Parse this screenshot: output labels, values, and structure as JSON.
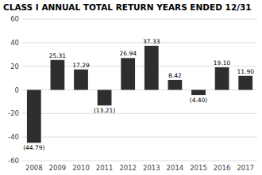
{
  "chart_data": {
    "type": "bar",
    "title": "CLASS I ANNUAL TOTAL RETURN YEARS ENDED 12/31",
    "categories": [
      "2008",
      "2009",
      "2010",
      "2011",
      "2012",
      "2013",
      "2014",
      "2015",
      "2016",
      "2017"
    ],
    "values": [
      -44.79,
      25.31,
      17.29,
      -13.21,
      26.94,
      37.33,
      8.42,
      -4.4,
      19.1,
      11.9
    ],
    "value_labels": [
      "(44.79)",
      "25.31",
      "17.29",
      "(13.21)",
      "26.94",
      "37.33",
      "8.42",
      "(4.40)",
      "19.10",
      "11.90"
    ],
    "color": "#2e2e2e",
    "ylim": [
      -60,
      60
    ],
    "yticks": [
      -60,
      -40,
      -20,
      0,
      20,
      40,
      60
    ],
    "grid": true
  }
}
